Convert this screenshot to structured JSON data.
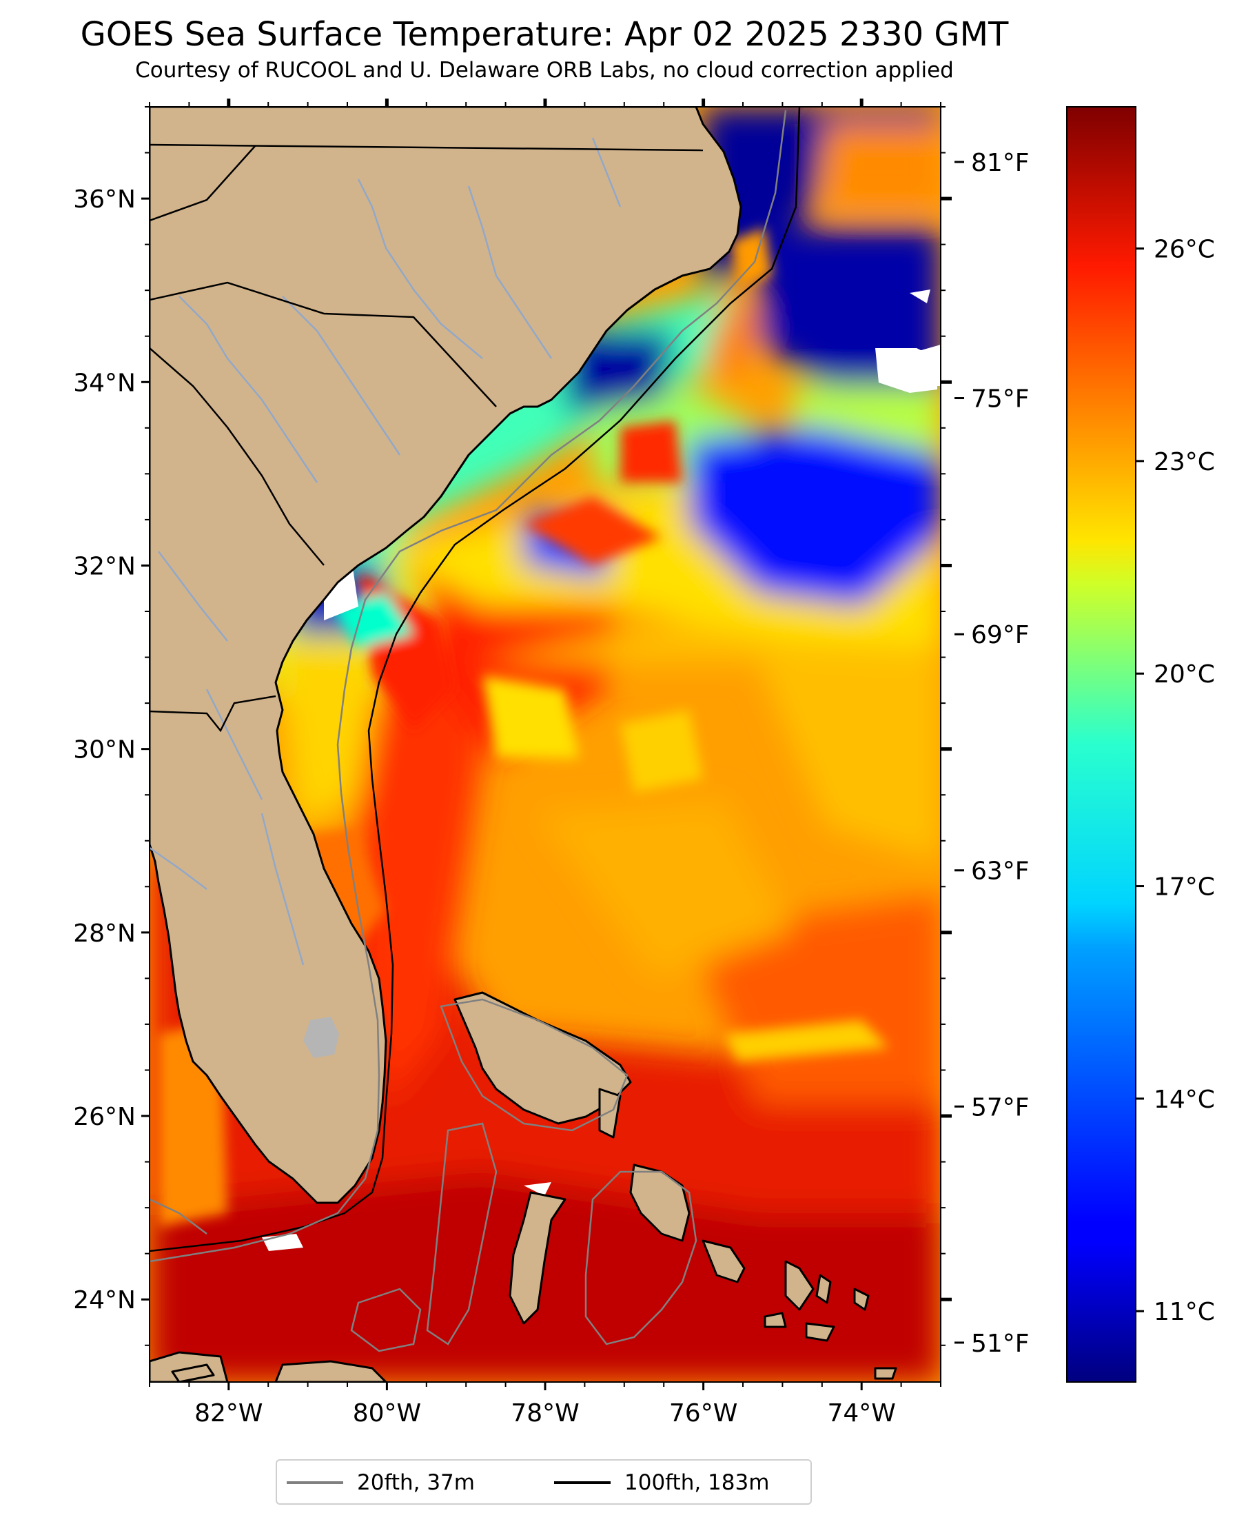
{
  "title": "GOES Sea Surface Temperature: Apr 02 2025 2330 GMT",
  "subtitle": "Courtesy of RUCOOL and U. Delaware ORB Labs, no cloud correction applied",
  "map": {
    "lon_range": [
      -83,
      -73
    ],
    "lat_range": [
      23.1,
      37.0
    ],
    "x_ticks": [
      {
        "value": -82,
        "label": "82°W"
      },
      {
        "value": -80,
        "label": "80°W"
      },
      {
        "value": -78,
        "label": "78°W"
      },
      {
        "value": -76,
        "label": "76°W"
      },
      {
        "value": -74,
        "label": "74°W"
      }
    ],
    "y_ticks": [
      {
        "value": 24,
        "label": "24°N"
      },
      {
        "value": 26,
        "label": "26°N"
      },
      {
        "value": 28,
        "label": "28°N"
      },
      {
        "value": 30,
        "label": "30°N"
      },
      {
        "value": 32,
        "label": "32°N"
      },
      {
        "value": 34,
        "label": "34°N"
      },
      {
        "value": 36,
        "label": "36°N"
      }
    ],
    "fahrenheit_ticks": [
      {
        "value": 81,
        "label": "81°F"
      },
      {
        "value": 75,
        "label": "75°F"
      },
      {
        "value": 69,
        "label": "69°F"
      },
      {
        "value": 63,
        "label": "63°F"
      },
      {
        "value": 57,
        "label": "57°F"
      },
      {
        "value": 51,
        "label": "51°F"
      }
    ],
    "land_color": "#d2b48c",
    "river_color": "#92a8c8",
    "lake_color": "#b5b5b5"
  },
  "colorbar": {
    "colormap": "jet",
    "range_c": [
      10.0,
      28.0
    ],
    "ticks": [
      {
        "value": 26,
        "label": "26°C"
      },
      {
        "value": 23,
        "label": "23°C"
      },
      {
        "value": 20,
        "label": "20°C"
      },
      {
        "value": 17,
        "label": "17°C"
      },
      {
        "value": 14,
        "label": "14°C"
      },
      {
        "value": 11,
        "label": "11°C"
      }
    ]
  },
  "legend": {
    "items": [
      {
        "label": "20fth, 37m",
        "color": "#808080"
      },
      {
        "label": "100fth, 183m",
        "color": "#000000"
      }
    ]
  }
}
